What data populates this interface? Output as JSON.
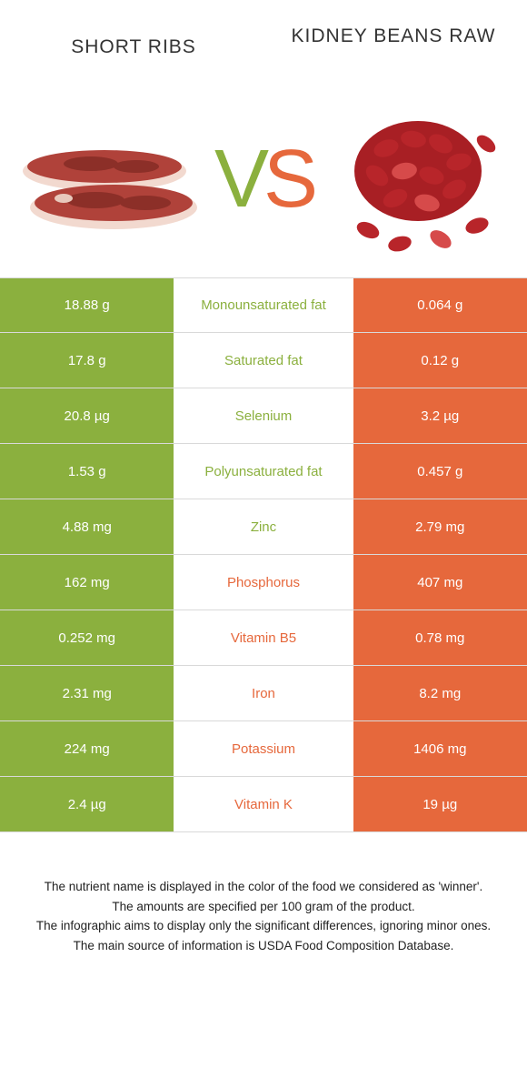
{
  "header": {
    "left_title": "Short ribs",
    "right_title": "Kidney beans raw",
    "vs_v": "V",
    "vs_s": "S"
  },
  "colors": {
    "green": "#8bb03e",
    "orange": "#e6683c",
    "text_white": "#ffffff"
  },
  "rows": [
    {
      "left": "18.88 g",
      "label": "Monounsaturated fat",
      "right": "0.064 g",
      "winner": "left"
    },
    {
      "left": "17.8 g",
      "label": "Saturated fat",
      "right": "0.12 g",
      "winner": "left"
    },
    {
      "left": "20.8 µg",
      "label": "Selenium",
      "right": "3.2 µg",
      "winner": "left"
    },
    {
      "left": "1.53 g",
      "label": "Polyunsaturated fat",
      "right": "0.457 g",
      "winner": "left"
    },
    {
      "left": "4.88 mg",
      "label": "Zinc",
      "right": "2.79 mg",
      "winner": "left"
    },
    {
      "left": "162 mg",
      "label": "Phosphorus",
      "right": "407 mg",
      "winner": "right"
    },
    {
      "left": "0.252 mg",
      "label": "Vitamin B5",
      "right": "0.78 mg",
      "winner": "right"
    },
    {
      "left": "2.31 mg",
      "label": "Iron",
      "right": "8.2 mg",
      "winner": "right"
    },
    {
      "left": "224 mg",
      "label": "Potassium",
      "right": "1406 mg",
      "winner": "right"
    },
    {
      "left": "2.4 µg",
      "label": "Vitamin K",
      "right": "19 µg",
      "winner": "right"
    }
  ],
  "footer": {
    "line1": "The nutrient name is displayed in the color of the food we considered as 'winner'.",
    "line2": "The amounts are specified per 100 gram of the product.",
    "line3": "The infographic aims to display only the significant differences, ignoring minor ones.",
    "line4": "The main source of information is USDA Food Composition Database."
  }
}
